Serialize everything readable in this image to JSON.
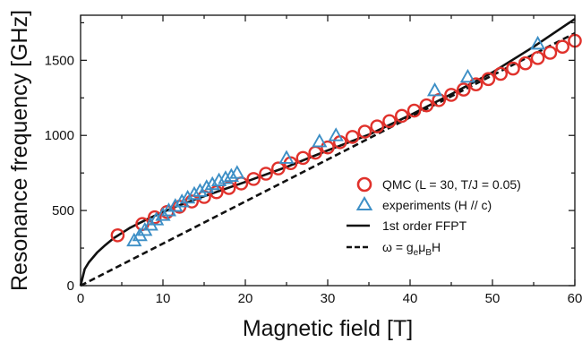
{
  "chart_data": {
    "type": "scatter",
    "xlabel": "Magnetic field [T]",
    "ylabel": "Resonance frequency [GHz]",
    "xlim": [
      0,
      60
    ],
    "ylim": [
      0,
      1800
    ],
    "x_ticks": [
      0,
      10,
      20,
      30,
      40,
      50,
      60
    ],
    "y_ticks": [
      0,
      500,
      1000,
      1500
    ],
    "grid": false,
    "legend_position": "right",
    "series": [
      {
        "name": "QMC (L = 30, T/J = 0.05)",
        "marker": "circle",
        "color": "#e0312b",
        "x": [
          4.5,
          7.5,
          9.0,
          10.5,
          12.0,
          13.5,
          15.0,
          16.5,
          18.0,
          19.5,
          21.0,
          22.5,
          24.0,
          25.5,
          27.0,
          28.5,
          30.0,
          31.5,
          33.0,
          34.5,
          36.0,
          37.5,
          39.0,
          40.5,
          42.0,
          43.5,
          45.0,
          46.5,
          48.0,
          49.5,
          51.0,
          52.5,
          54.0,
          55.5,
          57.0,
          58.5,
          60.0
        ],
        "y": [
          335,
          410,
          455,
          490,
          525,
          560,
          590,
          622,
          650,
          680,
          710,
          745,
          780,
          815,
          850,
          885,
          920,
          955,
          990,
          1025,
          1060,
          1095,
          1130,
          1165,
          1200,
          1235,
          1270,
          1305,
          1340,
          1375,
          1410,
          1445,
          1480,
          1515,
          1550,
          1590,
          1630
        ]
      },
      {
        "name": "experiments (H // c)",
        "marker": "triangle",
        "color": "#3d8fc6",
        "x": [
          6.5,
          7.2,
          7.8,
          8.5,
          9.2,
          10.0,
          10.7,
          11.5,
          12.3,
          13.0,
          13.8,
          14.5,
          15.3,
          16.0,
          16.8,
          17.6,
          18.3,
          19.0,
          25.0,
          29.0,
          31.0,
          43.0,
          47.0,
          55.5
        ],
        "y": [
          300,
          335,
          370,
          405,
          440,
          470,
          500,
          530,
          560,
          585,
          610,
          630,
          655,
          675,
          700,
          715,
          730,
          750,
          850,
          960,
          1000,
          1300,
          1390,
          1610
        ]
      },
      {
        "name": "1st order FFPT",
        "style": "solid",
        "color": "#111111",
        "x": [
          0,
          0.5,
          1,
          2,
          3,
          4,
          5,
          6,
          8,
          10,
          12,
          15,
          20,
          25,
          30,
          35,
          40,
          45,
          50,
          55,
          60
        ],
        "y": [
          0,
          110,
          155,
          220,
          270,
          315,
          350,
          385,
          440,
          490,
          535,
          595,
          690,
          790,
          900,
          1005,
          1135,
          1275,
          1420,
          1590,
          1775
        ]
      },
      {
        "name": "ω =  g_e μ_B H",
        "style": "dashed",
        "color": "#111111",
        "x": [
          0,
          60
        ],
        "y": [
          0,
          1680
        ]
      }
    ]
  }
}
